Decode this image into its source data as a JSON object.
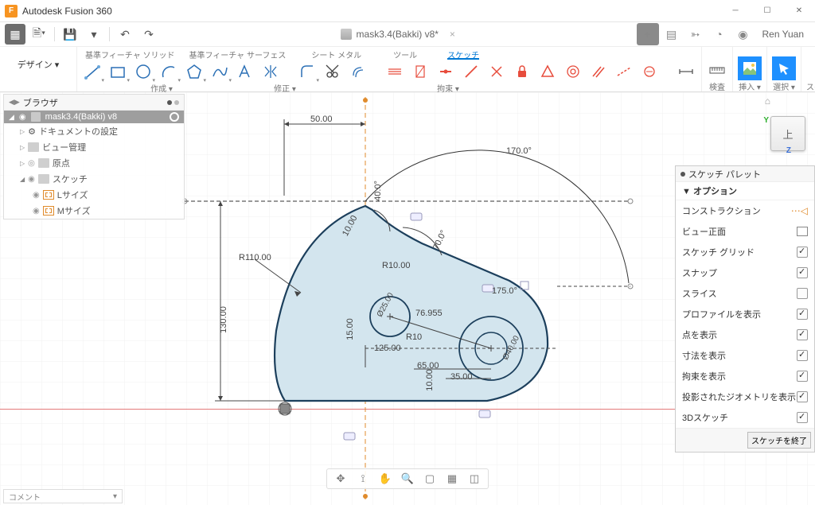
{
  "app": {
    "title": "Autodesk Fusion 360",
    "icon_letter": "F",
    "user": "Ren Yuan"
  },
  "document": {
    "name": "mask3.4(Bakki) v8*"
  },
  "ribbon": {
    "design_label": "デザイン ▾",
    "groups": {
      "g1": "基準フィーチャ ソリッド",
      "g2": "基準フィーチャ サーフェス",
      "g3": "シート メタル",
      "g4": "ツール",
      "g5": "スケッチ"
    },
    "foot": {
      "create": "作成 ▾",
      "modify": "修正 ▾",
      "constrain": "拘束 ▾",
      "inspect": "検査 ▾",
      "insert": "挿入 ▾",
      "select": "選択 ▾",
      "finish": "スケッチを終了 ▾"
    }
  },
  "browser": {
    "title": "ブラウザ",
    "root": "mask3.4(Bakki) v8",
    "items": [
      "ドキュメントの設定",
      "ビュー管理",
      "原点",
      "スケッチ"
    ],
    "sketches": [
      "Lサイズ",
      "Mサイズ"
    ]
  },
  "palette": {
    "title": "スケッチ パレット",
    "section": "オプション",
    "rows": [
      {
        "label": "コンストラクション",
        "type": "construct"
      },
      {
        "label": "ビュー正面",
        "type": "normal"
      },
      {
        "label": "スケッチ グリッド",
        "type": "check",
        "on": true
      },
      {
        "label": "スナップ",
        "type": "check",
        "on": true
      },
      {
        "label": "スライス",
        "type": "check",
        "on": false
      },
      {
        "label": "プロファイルを表示",
        "type": "check",
        "on": true
      },
      {
        "label": "点を表示",
        "type": "check",
        "on": true
      },
      {
        "label": "寸法を表示",
        "type": "check",
        "on": true
      },
      {
        "label": "拘束を表示",
        "type": "check",
        "on": true
      },
      {
        "label": "投影されたジオメトリを表示",
        "type": "check",
        "on": true
      },
      {
        "label": "3Dスケッチ",
        "type": "check",
        "on": true
      }
    ],
    "footer_btn": "スケッチを終了"
  },
  "viewcube": {
    "face": "上",
    "y": "Y",
    "z": "Z"
  },
  "comment": "コメント",
  "sketch": {
    "fill": "#d3e5ee",
    "stroke": "#1c3f5c",
    "construction": "#e08b2c",
    "dim_color": "#333333",
    "dims": {
      "d50": "50.00",
      "r110": "R110.00",
      "d130": "130.00",
      "d1700": "170.0°",
      "d700": "70.0°",
      "d400": "40.0°",
      "d76955": "76.955",
      "d125": "125.00",
      "d65": "65.00",
      "d35": "35.00",
      "d15": "15.00",
      "d10a": "10.00",
      "d10b": "10.00",
      "d1750": "175.0°",
      "r10": "R10.00",
      "r10b": "R10",
      "r10c": "R10.00",
      "d25": "Ø25.00",
      "d40": "Ø40.00"
    }
  },
  "close_x": "×"
}
